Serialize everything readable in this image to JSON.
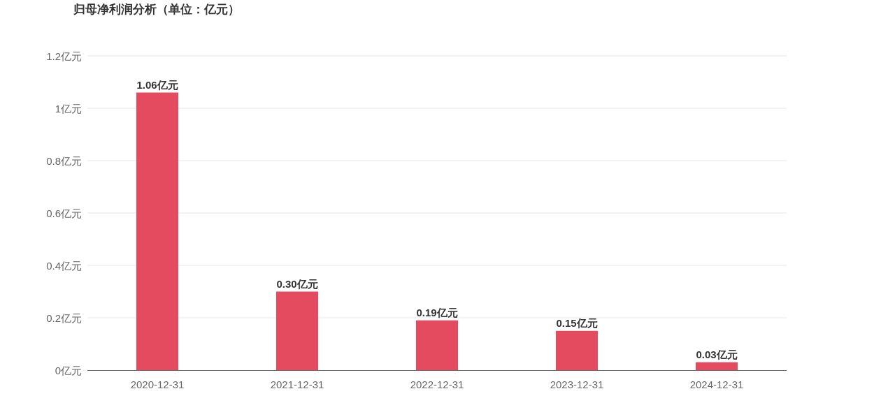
{
  "chart_data": {
    "type": "bar",
    "title": "归母净利润分析（单位：亿元）",
    "categories": [
      "2020-12-31",
      "2021-12-31",
      "2022-12-31",
      "2023-12-31",
      "2024-12-31"
    ],
    "values": [
      1.06,
      0.3,
      0.19,
      0.15,
      0.03
    ],
    "color": "#e54b5e",
    "value_labels": [
      "1.06亿元",
      "0.30亿元",
      "0.19亿元",
      "0.15亿元",
      "0.03亿元"
    ],
    "ylim": [
      0,
      1.2
    ],
    "yticks": [
      {
        "value": 0,
        "label": "0亿元"
      },
      {
        "value": 0.2,
        "label": "0.2亿元"
      },
      {
        "value": 0.4,
        "label": "0.4亿元"
      },
      {
        "value": 0.6,
        "label": "0.6亿元"
      },
      {
        "value": 0.8,
        "label": "0.8亿元"
      },
      {
        "value": 1,
        "label": "1亿元"
      },
      {
        "value": 1.2,
        "label": "1.2亿元"
      }
    ],
    "grid": "y"
  }
}
